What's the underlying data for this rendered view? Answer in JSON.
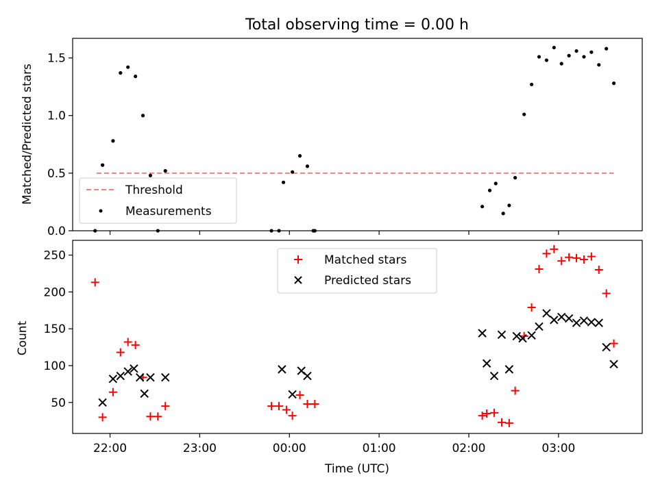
{
  "chart_data": [
    {
      "type": "scatter",
      "title": "Total observing time = 0.00 h",
      "xlabel": "",
      "ylabel": "Matched/Predicted stars",
      "xlim": [
        21.5833,
        3.9333
      ],
      "ylim": [
        0,
        1.67
      ],
      "yticks": [
        0,
        0.5,
        1.0,
        1.5
      ],
      "yticklabels": [
        "0.0",
        "0.5",
        "1.0",
        "1.5"
      ],
      "xticks": [
        22.0,
        23.0,
        0.0,
        1.0,
        2.0,
        3.0
      ],
      "grid": false,
      "legend_position": "lower-left",
      "series": [
        {
          "name": "Threshold",
          "kind": "line",
          "style": "dashed",
          "color": "#f08080",
          "x": [
            "21:51",
            "03:37"
          ],
          "y": [
            0.5,
            0.5
          ]
        },
        {
          "name": "Measurements",
          "kind": "scatter",
          "marker": "dot",
          "color": "#000000",
          "x": [
            "21:50",
            "21:55",
            "22:02",
            "22:07",
            "22:12",
            "22:17",
            "22:22",
            "22:27",
            "22:32",
            "22:37",
            "21:55",
            "23:48",
            "23:53",
            "23:56",
            "00:02",
            "00:07",
            "00:12",
            "00:16"
          ],
          "y": [
            0.0,
            0.57,
            0.78,
            1.37,
            1.42,
            1.34,
            1.0,
            0.48,
            0.0,
            0.52,
            0.57,
            0.0,
            0.0,
            0.42,
            0.51,
            0.65,
            0.56,
            0.0
          ],
          "note": ""
        },
        {
          "name": "",
          "kind": "scatter",
          "marker": "dot",
          "color": "#000000",
          "x": [
            "00:17",
            "02:09",
            "02:14",
            "02:18",
            "02:23",
            "02:27",
            "02:31",
            "02:37",
            "02:42",
            "02:47",
            "02:52",
            "02:57",
            "03:02",
            "03:07",
            "03:12",
            "03:17",
            "03:22",
            "03:27",
            "03:32",
            "03:37"
          ],
          "y": [
            0.0,
            0.21,
            0.35,
            0.41,
            0.15,
            0.22,
            0.46,
            1.01,
            1.27,
            1.51,
            1.48,
            1.59,
            1.45,
            1.52,
            1.56,
            1.51,
            1.55,
            1.44,
            1.58,
            1.28
          ]
        }
      ]
    },
    {
      "type": "scatter",
      "title": "",
      "xlabel": "Time (UTC)",
      "ylabel": "Count",
      "xticklabels": [
        "22:00",
        "23:00",
        "00:00",
        "01:00",
        "02:00",
        "03:00"
      ],
      "yticks": [
        50,
        100,
        150,
        200,
        250
      ],
      "yticklabels": [
        "50",
        "100",
        "150",
        "200",
        "250"
      ],
      "ylim": [
        8,
        270
      ],
      "grid": false,
      "legend_position": "upper-center",
      "series": [
        {
          "name": "Matched stars",
          "marker": "plus",
          "color": "#ff0000",
          "x": [
            "21:50",
            "21:55",
            "22:02",
            "22:07",
            "22:12",
            "22:17",
            "22:22",
            "22:27",
            "22:32",
            "22:37",
            "23:48",
            "23:53",
            "23:58",
            "00:02",
            "00:07",
            "00:12",
            "00:17",
            "02:09",
            "02:12",
            "02:17",
            "02:22",
            "02:27",
            "02:31",
            "02:37",
            "02:42",
            "02:47",
            "02:52",
            "02:57",
            "03:02",
            "03:07",
            "03:12",
            "03:17",
            "03:22",
            "03:27",
            "03:32",
            "03:37"
          ],
          "y": [
            213,
            30,
            64,
            118,
            132,
            128,
            84,
            31,
            31,
            45,
            45,
            45,
            40,
            32,
            60,
            48,
            48,
            32,
            35,
            36,
            23,
            22,
            66,
            140,
            179,
            231,
            252,
            258,
            242,
            247,
            246,
            244,
            248,
            230,
            198,
            130
          ]
        },
        {
          "name": "Predicted stars",
          "marker": "x",
          "color": "#000000",
          "x": [
            "21:55",
            "22:02",
            "22:07",
            "22:12",
            "22:16",
            "22:20",
            "22:23",
            "22:27",
            "22:37",
            "23:55",
            "00:02",
            "00:08",
            "00:12",
            "02:09",
            "02:12",
            "02:17",
            "02:22",
            "02:27",
            "02:32",
            "02:36",
            "02:42",
            "02:47",
            "02:52",
            "02:57",
            "03:02",
            "03:07",
            "03:12",
            "03:17",
            "03:22",
            "03:27",
            "03:32",
            "03:37"
          ],
          "y": [
            50,
            82,
            86,
            92,
            96,
            84,
            62,
            84,
            84,
            95,
            61,
            93,
            86,
            144,
            103,
            86,
            142,
            95,
            140,
            137,
            141,
            153,
            171,
            162,
            166,
            164,
            158,
            161,
            159,
            158,
            125,
            102
          ]
        }
      ]
    }
  ]
}
